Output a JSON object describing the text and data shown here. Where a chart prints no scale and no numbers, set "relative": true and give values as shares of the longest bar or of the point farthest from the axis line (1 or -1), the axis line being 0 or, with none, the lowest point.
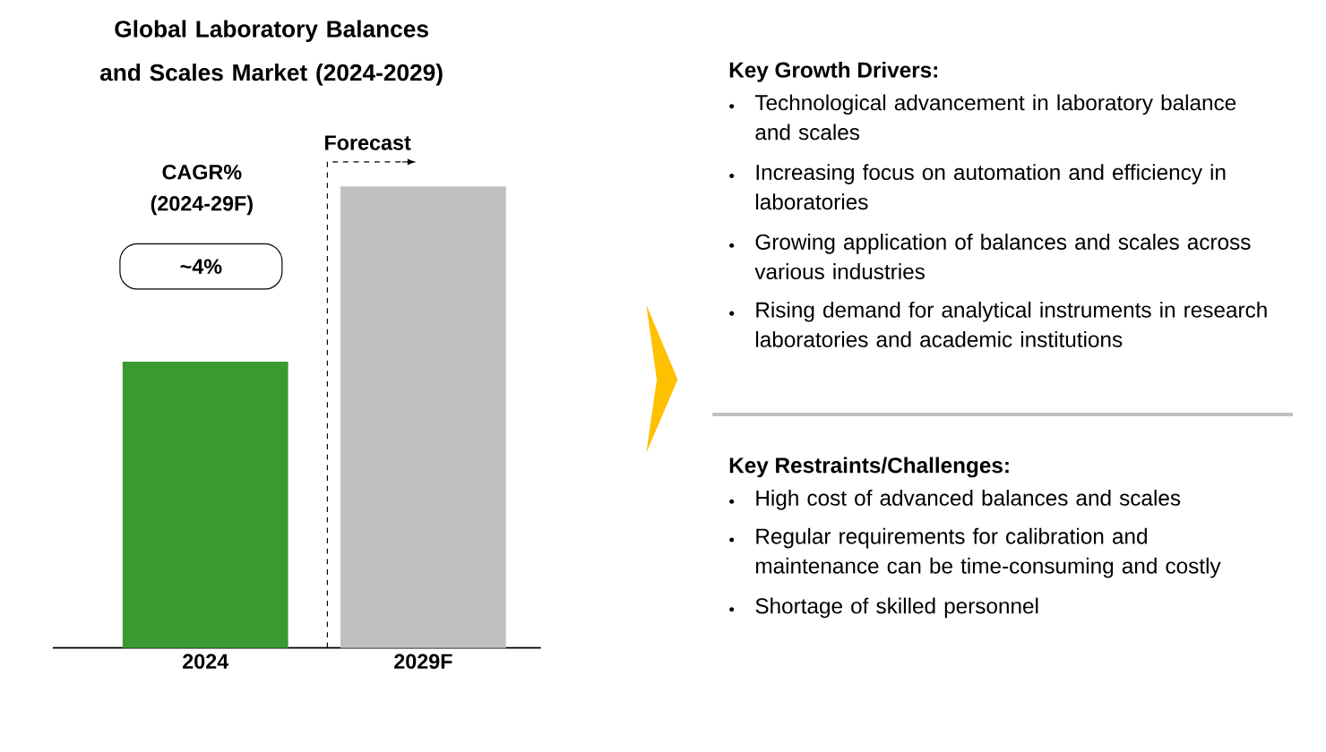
{
  "chart_data": {
    "type": "bar",
    "title": "Global Laboratory Balances and Scales Market (2024-2029)",
    "categories": [
      "2024",
      "2029F"
    ],
    "values": [
      0.62,
      1
    ],
    "colors": [
      "#3a9a31",
      "#c0c0c0"
    ],
    "relative": true,
    "annotations": [
      "Forecast",
      "CAGR% (2024-29F)",
      "~4%",
      "Key Growth Drivers:",
      "Technological advancement in laboratory balance and scales",
      "Increasing focus on automation and efficiency in laboratories",
      "Growing application of balances and scales across various industries",
      "Rising demand for analytical instruments in research laboratories and academic institutions",
      "Key Restraints/Challenges:",
      "High cost of advanced balances and scales",
      "Regular requirements for calibration and maintenance can be time-consuming and costly",
      "Shortage of skilled personnel"
    ]
  }
}
